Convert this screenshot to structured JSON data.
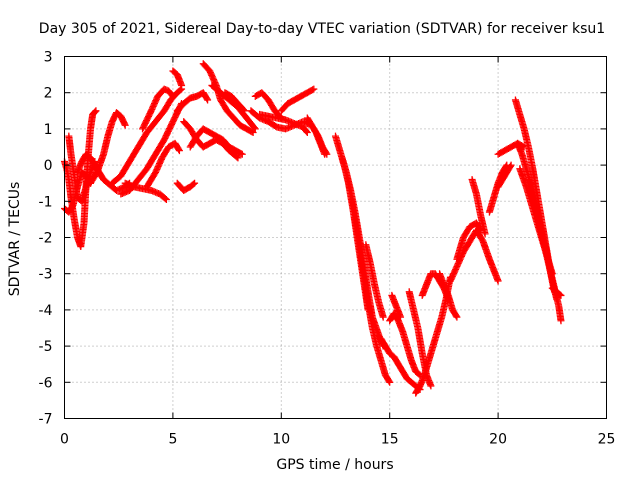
{
  "chart_data": {
    "type": "scatter",
    "title": "Day 305 of 2021, Sidereal Day-to-day VTEC variation (SDTVAR) for receiver ksu1",
    "xlabel": "GPS time / hours",
    "ylabel": "SDTVAR / TECUs",
    "xlim": [
      0,
      25
    ],
    "ylim": [
      -7,
      3
    ],
    "xticks": [
      "0",
      "5",
      "10",
      "15",
      "20",
      "25"
    ],
    "yticks": [
      "3",
      "2",
      "1",
      "0",
      "-1",
      "-2",
      "-3",
      "-4",
      "-5",
      "-6",
      "-7"
    ],
    "grid": true,
    "marker": "+",
    "color": "#ff0000",
    "series": [
      {
        "x": [
          0.0,
          0.1,
          0.2,
          0.3,
          0.45,
          0.6,
          0.75,
          0.9,
          1.0,
          1.1,
          1.2,
          1.3,
          1.45
        ],
        "y": [
          0.1,
          -0.1,
          -0.4,
          -0.9,
          -1.5,
          -2.0,
          -2.25,
          -1.6,
          -0.5,
          0.3,
          1.0,
          1.4,
          1.5
        ]
      },
      {
        "x": [
          0.0,
          0.2,
          0.4,
          0.6,
          0.8,
          1.0,
          1.2
        ],
        "y": [
          -1.2,
          -1.3,
          -1.1,
          -0.6,
          -0.2,
          -0.3,
          -0.5
        ]
      },
      {
        "x": [
          0.2,
          0.3,
          0.45,
          0.6,
          0.8,
          1.0,
          1.2,
          1.4
        ],
        "y": [
          0.8,
          0.3,
          -0.3,
          -0.9,
          -1.0,
          -0.6,
          -0.2,
          0.1
        ]
      },
      {
        "x": [
          0.6,
          0.8,
          1.0,
          1.2,
          1.4,
          1.6,
          1.8,
          2.0,
          2.2,
          2.4,
          2.6,
          2.8,
          3.0
        ],
        "y": [
          -0.2,
          0.1,
          0.3,
          0.2,
          0.0,
          -0.2,
          -0.4,
          -0.5,
          -0.6,
          -0.7,
          -0.65,
          -0.6,
          -0.5
        ]
      },
      {
        "x": [
          1.2,
          1.5,
          1.8,
          2.0,
          2.2,
          2.4,
          2.6,
          2.8
        ],
        "y": [
          -0.5,
          -0.2,
          0.3,
          0.8,
          1.2,
          1.45,
          1.35,
          1.1
        ]
      },
      {
        "x": [
          2.8,
          3.2,
          3.6,
          4.0,
          4.4,
          4.7
        ],
        "y": [
          -0.5,
          -0.6,
          -0.65,
          -0.7,
          -0.8,
          -0.95
        ]
      },
      {
        "x": [
          2.2,
          2.6,
          3.0,
          3.4,
          3.8,
          4.2,
          4.6,
          4.9,
          5.2,
          5.4
        ],
        "y": [
          -0.5,
          -0.3,
          0.1,
          0.5,
          0.9,
          1.2,
          1.5,
          1.8,
          2.0,
          2.1
        ]
      },
      {
        "x": [
          2.6,
          3.0,
          3.4,
          3.8,
          4.2,
          4.6,
          5.0,
          5.4
        ],
        "y": [
          -0.8,
          -0.7,
          -0.4,
          -0.1,
          0.3,
          0.7,
          1.2,
          1.7
        ]
      },
      {
        "x": [
          3.6,
          4.0,
          4.3,
          4.6,
          4.8,
          5.0
        ],
        "y": [
          1.0,
          1.5,
          1.9,
          2.1,
          2.05,
          1.9
        ]
      },
      {
        "x": [
          3.8,
          4.2,
          4.5,
          4.8,
          5.1,
          5.3
        ],
        "y": [
          -0.6,
          -0.2,
          0.2,
          0.5,
          0.6,
          0.4
        ]
      },
      {
        "x": [
          5.0,
          5.2,
          5.4
        ],
        "y": [
          2.6,
          2.5,
          2.2
        ]
      },
      {
        "x": [
          5.2,
          5.5,
          5.8,
          6.1,
          6.4,
          6.6
        ],
        "y": [
          1.5,
          1.7,
          1.85,
          1.9,
          2.0,
          1.8
        ]
      },
      {
        "x": [
          5.5,
          5.8,
          6.1,
          6.4,
          6.7,
          7.0,
          7.3,
          7.6,
          8.0
        ],
        "y": [
          1.2,
          1.0,
          0.7,
          0.5,
          0.6,
          0.7,
          0.6,
          0.4,
          0.2
        ]
      },
      {
        "x": [
          5.8,
          6.1,
          6.4,
          6.7,
          7.0,
          7.3,
          7.6,
          7.9,
          8.2
        ],
        "y": [
          0.5,
          0.8,
          1.0,
          0.9,
          0.8,
          0.7,
          0.5,
          0.4,
          0.3
        ]
      },
      {
        "x": [
          5.2,
          5.5,
          5.8,
          6.0
        ],
        "y": [
          -0.5,
          -0.7,
          -0.6,
          -0.5
        ]
      },
      {
        "x": [
          6.4,
          6.7,
          7.0,
          7.2,
          7.5,
          7.8,
          8.1,
          8.4,
          8.7
        ],
        "y": [
          2.8,
          2.6,
          2.2,
          1.8,
          1.5,
          1.3,
          1.1,
          1.0,
          0.9
        ]
      },
      {
        "x": [
          6.8,
          7.2,
          7.6,
          8.0,
          8.4,
          8.8
        ],
        "y": [
          2.2,
          2.0,
          1.8,
          1.6,
          1.3,
          1.0
        ]
      },
      {
        "x": [
          7.4,
          7.7,
          8.0,
          8.3
        ],
        "y": [
          2.0,
          1.9,
          1.7,
          1.5
        ]
      },
      {
        "x": [
          8.6,
          9.0,
          9.4,
          9.8,
          10.2,
          10.6,
          11.0,
          11.4
        ],
        "y": [
          1.5,
          1.3,
          1.2,
          1.05,
          1.0,
          1.1,
          1.2,
          1.1
        ]
      },
      {
        "x": [
          8.8,
          9.1,
          9.4,
          9.7,
          10.0
        ],
        "y": [
          1.9,
          2.0,
          1.8,
          1.5,
          1.3
        ]
      },
      {
        "x": [
          9.0,
          9.4,
          9.8,
          10.2,
          10.6,
          11.0,
          11.2
        ],
        "y": [
          1.4,
          1.35,
          1.3,
          1.25,
          1.15,
          1.05,
          0.9
        ]
      },
      {
        "x": [
          10.0,
          10.3,
          10.6,
          10.9,
          11.2,
          11.5
        ],
        "y": [
          1.5,
          1.7,
          1.8,
          1.9,
          2.0,
          2.1
        ]
      },
      {
        "x": [
          11.2,
          11.4,
          11.6,
          11.8,
          12.0
        ],
        "y": [
          1.3,
          1.1,
          0.9,
          0.6,
          0.3
        ]
      },
      {
        "x": [
          11.5,
          11.7,
          11.9,
          12.1
        ],
        "y": [
          1.0,
          0.8,
          0.5,
          0.3
        ]
      },
      {
        "x": [
          12.5,
          12.7,
          12.9,
          13.1,
          13.3,
          13.5,
          13.7,
          13.9,
          14.0
        ],
        "y": [
          0.8,
          0.4,
          0.0,
          -0.5,
          -1.2,
          -2.0,
          -2.8,
          -3.6,
          -4.0
        ]
      },
      {
        "x": [
          12.8,
          13.0,
          13.2,
          13.4,
          13.6,
          13.8,
          14.0,
          14.2,
          14.5,
          14.7
        ],
        "y": [
          0.2,
          -0.2,
          -0.7,
          -1.3,
          -2.0,
          -2.7,
          -3.5,
          -4.2,
          -4.7,
          -5.0
        ]
      },
      {
        "x": [
          13.4,
          13.6,
          13.8,
          14.0,
          14.2,
          14.4,
          14.6,
          14.8,
          15.0
        ],
        "y": [
          -1.5,
          -2.2,
          -3.0,
          -3.8,
          -4.5,
          -5.0,
          -5.4,
          -5.8,
          -6.0
        ]
      },
      {
        "x": [
          13.9,
          14.1,
          14.3,
          14.5,
          14.7
        ],
        "y": [
          -2.2,
          -2.7,
          -3.3,
          -3.8,
          -4.2
        ]
      },
      {
        "x": [
          14.6,
          14.8,
          15.0,
          15.2,
          15.4,
          15.6,
          15.8,
          16.0,
          16.2,
          16.4
        ],
        "y": [
          -4.8,
          -5.0,
          -5.2,
          -5.3,
          -5.5,
          -5.7,
          -5.9,
          -6.0,
          -6.1,
          -6.2
        ]
      },
      {
        "x": [
          15.0,
          15.2,
          15.4,
          15.6,
          15.8,
          16.0,
          16.2,
          16.4
        ],
        "y": [
          -4.3,
          -4.1,
          -4.3,
          -4.6,
          -5.0,
          -5.4,
          -5.7,
          -5.8
        ]
      },
      {
        "x": [
          15.1,
          15.3,
          15.5
        ],
        "y": [
          -3.6,
          -3.9,
          -4.2
        ]
      },
      {
        "x": [
          15.9,
          16.1,
          16.3,
          16.5,
          16.7,
          16.9
        ],
        "y": [
          -3.5,
          -4.0,
          -4.5,
          -5.2,
          -5.8,
          -6.1
        ]
      },
      {
        "x": [
          16.2,
          16.4,
          16.6,
          16.8,
          17.0,
          17.2,
          17.4,
          17.6,
          17.8
        ],
        "y": [
          -6.3,
          -6.1,
          -5.8,
          -5.4,
          -5.0,
          -4.6,
          -4.2,
          -3.7,
          -3.1
        ]
      },
      {
        "x": [
          16.5,
          16.7,
          16.9,
          17.1,
          17.3,
          17.5,
          17.7
        ],
        "y": [
          -3.6,
          -3.3,
          -3.0,
          -3.0,
          -3.2,
          -3.4,
          -3.7
        ]
      },
      {
        "x": [
          17.3,
          17.5,
          17.7,
          17.9,
          18.1
        ],
        "y": [
          -3.0,
          -3.3,
          -3.6,
          -4.0,
          -4.2
        ]
      },
      {
        "x": [
          17.8,
          18.1,
          18.4,
          18.7,
          19.0
        ],
        "y": [
          -3.2,
          -2.8,
          -2.4,
          -2.1,
          -1.8
        ]
      },
      {
        "x": [
          18.1,
          18.4,
          18.7,
          19.0,
          19.2
        ],
        "y": [
          -2.6,
          -2.0,
          -1.7,
          -1.6,
          -1.8
        ]
      },
      {
        "x": [
          18.8,
          19.0,
          19.2,
          19.4
        ],
        "y": [
          -0.4,
          -0.8,
          -1.4,
          -1.9
        ]
      },
      {
        "x": [
          19.0,
          19.3,
          19.6,
          19.8,
          20.0
        ],
        "y": [
          -1.8,
          -2.1,
          -2.6,
          -2.9,
          -3.2
        ]
      },
      {
        "x": [
          19.6,
          19.8,
          20.0,
          20.2,
          20.4
        ],
        "y": [
          -1.3,
          -0.9,
          -0.5,
          -0.2,
          0.0
        ]
      },
      {
        "x": [
          20.0,
          20.3,
          20.6,
          20.9,
          21.2
        ],
        "y": [
          0.3,
          0.4,
          0.5,
          0.6,
          0.5
        ]
      },
      {
        "x": [
          20.0,
          20.2,
          20.4,
          20.6
        ],
        "y": [
          -0.6,
          -0.4,
          -0.2,
          0.0
        ]
      },
      {
        "x": [
          20.8,
          21.0,
          21.2,
          21.4,
          21.6,
          21.8,
          22.0,
          22.2,
          22.4,
          22.6
        ],
        "y": [
          1.8,
          1.4,
          1.0,
          0.5,
          -0.1,
          -0.8,
          -1.5,
          -2.2,
          -2.9,
          -3.5
        ]
      },
      {
        "x": [
          20.9,
          21.1,
          21.3,
          21.5,
          21.7,
          21.9,
          22.1,
          22.3,
          22.5,
          22.7
        ],
        "y": [
          0.6,
          0.3,
          -0.1,
          -0.5,
          -1.0,
          -1.5,
          -2.0,
          -2.6,
          -3.2,
          -3.7
        ]
      },
      {
        "x": [
          21.4,
          21.6,
          21.8,
          22.0,
          22.2,
          22.4,
          22.6,
          22.8,
          22.9
        ],
        "y": [
          -0.4,
          -0.9,
          -1.4,
          -1.9,
          -2.4,
          -2.9,
          -3.4,
          -3.9,
          -4.3
        ]
      },
      {
        "x": [
          21.0,
          21.3,
          21.6,
          21.9,
          22.2,
          22.5
        ],
        "y": [
          -0.1,
          -0.6,
          -1.2,
          -1.8,
          -2.4,
          -3.0
        ]
      },
      {
        "x": [
          22.5,
          22.7,
          22.9
        ],
        "y": [
          -3.4,
          -3.5,
          -3.6
        ]
      }
    ]
  }
}
